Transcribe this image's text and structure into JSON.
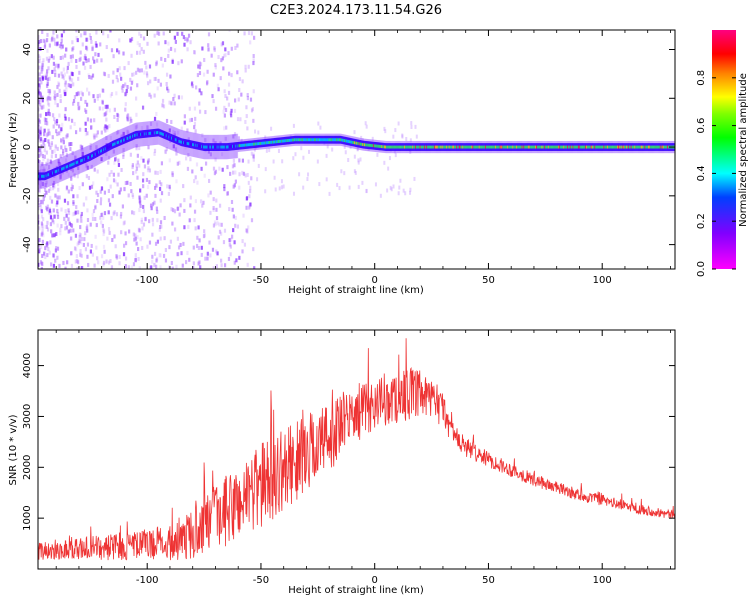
{
  "figure": {
    "title": "C2E3.2024.173.11.54.G26"
  },
  "chart_data": [
    {
      "type": "heatmap",
      "xlabel": "Height of straight line (km)",
      "ylabel": "Frequency (Hz)",
      "xlim": [
        -148,
        132
      ],
      "ylim": [
        -50,
        48
      ],
      "xticks": [
        -100,
        -50,
        0,
        50,
        100
      ],
      "yticks": [
        -40,
        -20,
        0,
        20,
        40
      ],
      "xtick_labels": [
        "-100",
        "-50",
        "0",
        "50",
        "100"
      ],
      "ytick_labels": [
        "-40",
        "-20",
        "0",
        "20",
        "40"
      ],
      "grid": false,
      "main_ridge": {
        "x": [
          -145,
          -135,
          -125,
          -115,
          -105,
          -95,
          -85,
          -75,
          -65,
          -55,
          -45,
          -35,
          -25,
          -15,
          -5,
          5,
          15,
          50,
          100,
          132
        ],
        "y": [
          -12,
          -8,
          -4,
          1,
          5,
          6,
          2,
          0,
          0,
          1,
          2,
          3,
          3,
          3,
          1,
          0,
          0,
          0,
          0,
          0
        ]
      },
      "colorbar": {
        "label": "Normalized spectral amplitude",
        "range": [
          0,
          1
        ],
        "ticks": [
          0.0,
          0.2,
          0.4,
          0.6,
          0.8
        ],
        "tick_labels": [
          "0.0",
          "0.2",
          "0.4",
          "0.6",
          "0.8"
        ],
        "colormap": "gist_rainbow_r"
      }
    },
    {
      "type": "line",
      "xlabel": "Height of straight line (km)",
      "ylabel": "SNR (10 * v/v)",
      "xlim": [
        -148,
        132
      ],
      "ylim": [
        0,
        4700
      ],
      "xticks": [
        -100,
        -50,
        0,
        50,
        100
      ],
      "yticks": [
        1000,
        2000,
        3000,
        4000
      ],
      "xtick_labels": [
        "-100",
        "-50",
        "0",
        "50",
        "100"
      ],
      "ytick_labels": [
        "1000",
        "2000",
        "3000",
        "4000"
      ],
      "grid": false,
      "series": [
        {
          "color": "#ee3333",
          "x": [
            -148,
            -140,
            -130,
            -120,
            -110,
            -100,
            -90,
            -85,
            -80,
            -75,
            -70,
            -65,
            -60,
            -55,
            -50,
            -45,
            -40,
            -35,
            -30,
            -25,
            -20,
            -15,
            -10,
            -5,
            0,
            5,
            10,
            15,
            20,
            25,
            30,
            35,
            40,
            50,
            60,
            70,
            80,
            90,
            100,
            110,
            120,
            132
          ],
          "y": [
            350,
            380,
            400,
            420,
            450,
            480,
            520,
            560,
            700,
            850,
            1000,
            1150,
            1300,
            1500,
            1650,
            1800,
            1950,
            2100,
            2300,
            2450,
            2600,
            2800,
            3000,
            3150,
            3250,
            3300,
            3350,
            3450,
            3400,
            3300,
            3150,
            2600,
            2400,
            2150,
            1950,
            1750,
            1600,
            1450,
            1350,
            1250,
            1150,
            1050
          ],
          "noise": [
            180,
            200,
            220,
            250,
            280,
            300,
            350,
            380,
            500,
            600,
            650,
            700,
            750,
            800,
            850,
            850,
            800,
            800,
            750,
            750,
            700,
            650,
            600,
            550,
            500,
            500,
            500,
            550,
            450,
            400,
            350,
            250,
            200,
            150,
            140,
            130,
            120,
            120,
            110,
            100,
            100,
            90
          ]
        }
      ]
    }
  ]
}
